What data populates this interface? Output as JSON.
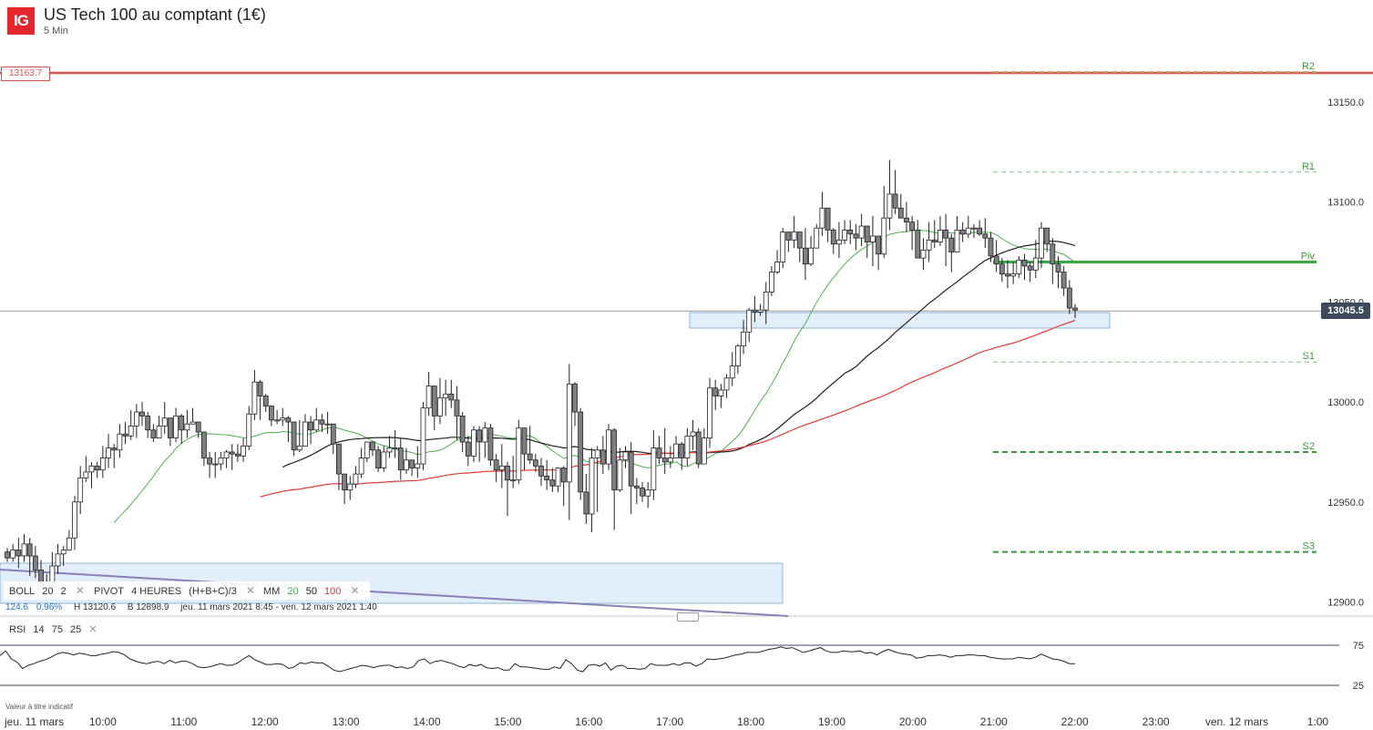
{
  "header": {
    "logo": "IG",
    "title": "US Tech 100 au comptant (1€)",
    "interval": "5 Min"
  },
  "current_price": "13045.5",
  "marked_level": "13163.7",
  "colors": {
    "up_candle": "#ffffff",
    "down_candle": "#7f7f86",
    "bollinger_mid": "#1f1f1f",
    "ma20": "#4caf50",
    "ma100": "#e53935",
    "pivot": "#3aa843",
    "price_box": "#3c4a5c",
    "zone": "#cfe2f6"
  },
  "indicators": [
    {
      "name": "BOLL",
      "params": [
        "20",
        "2"
      ],
      "close": "✕"
    },
    {
      "name": "PIVOT",
      "params": [
        "4 HEURES",
        "(H+B+C)/3"
      ],
      "close": "✕"
    },
    {
      "name": "MM",
      "params": [
        "20",
        "50",
        "100"
      ],
      "close": "✕"
    }
  ],
  "stats": {
    "change": "124.6",
    "change_pct": "0.96%",
    "high": "H 13120.6",
    "low": "B 12898.9",
    "range": "jeu. 11 mars 2021 8:45 - ven. 12 mars 2021 1:40"
  },
  "rsi": {
    "name": "RSI",
    "params": [
      "14",
      "75",
      "25"
    ],
    "close": "✕"
  },
  "disclaimer": "Valeur à titre indicatif",
  "chart_data": {
    "type": "candlestick",
    "y_ticks": [
      "13150.0",
      "13100.0",
      "13050.0",
      "13000.0",
      "12950.0",
      "12900.0"
    ],
    "y_tick_values": [
      13150,
      13100,
      13050,
      13000,
      12950,
      12900
    ],
    "ylim": [
      12893.6,
      13172.6
    ],
    "x_ticks": [
      "jeu. 11 mars",
      "10:00",
      "11:00",
      "12:00",
      "13:00",
      "14:00",
      "15:00",
      "16:00",
      "17:00",
      "18:00",
      "19:00",
      "20:00",
      "21:00",
      "22:00",
      "23:00",
      "ven. 12 mars",
      "1:00"
    ],
    "x_tick_hours": [
      9,
      10,
      11,
      12,
      13,
      14,
      15,
      16,
      17,
      18,
      19,
      20,
      21,
      22,
      23,
      24,
      25
    ],
    "pivots": [
      {
        "label": "R2",
        "value": 13165
      },
      {
        "label": "R1",
        "value": 13115
      },
      {
        "label": "Piv",
        "value": 13070
      },
      {
        "label": "S1",
        "value": 13020
      },
      {
        "label": "S2",
        "value": 12975
      },
      {
        "label": "S3",
        "value": 12925
      }
    ],
    "rsi_levels": [
      "75",
      "25"
    ],
    "candles": [
      [
        12925,
        12922,
        12927,
        12920
      ],
      [
        12922,
        12926,
        12929,
        12920
      ],
      [
        12926,
        12923,
        12932,
        12917
      ],
      [
        12923,
        12929,
        12934,
        12920
      ],
      [
        12929,
        12923,
        12932,
        12913
      ],
      [
        12923,
        12916,
        12928,
        12912
      ],
      [
        12916,
        12908,
        12921,
        12906
      ],
      [
        12908,
        12910,
        12914,
        12906
      ],
      [
        12910,
        12918,
        12925,
        12905
      ],
      [
        12918,
        12924,
        12929,
        12914
      ],
      [
        12924,
        12926,
        12928,
        12918
      ],
      [
        12926,
        12932,
        12936,
        12926
      ],
      [
        12932,
        12950,
        12953,
        12926
      ],
      [
        12950,
        12962,
        12968,
        12944
      ],
      [
        12962,
        12965,
        12973,
        12960
      ],
      [
        12965,
        12968,
        12970,
        12957
      ],
      [
        12968,
        12966,
        12970,
        12962
      ],
      [
        12966,
        12972,
        12978,
        12962
      ],
      [
        12972,
        12977,
        12984,
        12967
      ],
      [
        12977,
        12976,
        12979,
        12967
      ],
      [
        12976,
        12984,
        12989,
        12972
      ],
      [
        12984,
        12983,
        12990,
        12979
      ],
      [
        12983,
        12988,
        12996,
        12981
      ],
      [
        12988,
        12995,
        12999,
        12982
      ],
      [
        12995,
        12993,
        13000,
        12988
      ],
      [
        12993,
        12986,
        12995,
        12982
      ],
      [
        12986,
        12982,
        12989,
        12980
      ],
      [
        12982,
        12988,
        12993,
        12982
      ],
      [
        12988,
        12992,
        13000,
        12984
      ],
      [
        12992,
        12982,
        12991,
        12978
      ],
      [
        12982,
        12993,
        12997,
        12980
      ],
      [
        12993,
        12986,
        12994,
        12979
      ],
      [
        12986,
        12989,
        12996,
        12982
      ],
      [
        12989,
        12990,
        12997,
        12989
      ],
      [
        12990,
        12985,
        12988,
        12982
      ],
      [
        12985,
        12972,
        12983,
        12968
      ],
      [
        12972,
        12969,
        12975,
        12962
      ],
      [
        12969,
        12969,
        12975,
        12962
      ],
      [
        12969,
        12972,
        12975,
        12966
      ],
      [
        12972,
        12975,
        12976,
        12967
      ],
      [
        12975,
        12974,
        12979,
        12966
      ],
      [
        12974,
        12973,
        12979,
        12970
      ],
      [
        12973,
        12978,
        12982,
        12970
      ],
      [
        12978,
        12994,
        12998,
        12976
      ],
      [
        12994,
        13010,
        13016,
        12991
      ],
      [
        13010,
        13003,
        13011,
        12991
      ],
      [
        13003,
        12998,
        13004,
        12995
      ],
      [
        12998,
        12991,
        12998,
        12988
      ],
      [
        12991,
        12991,
        12996,
        12989
      ],
      [
        12991,
        12992,
        12997,
        12988
      ],
      [
        12992,
        12990,
        12993,
        12980
      ],
      [
        12990,
        12976,
        12989,
        12973
      ],
      [
        12976,
        12978,
        12991,
        12975
      ],
      [
        12978,
        12990,
        12994,
        12978
      ],
      [
        12990,
        12986,
        12993,
        12979
      ],
      [
        12986,
        12991,
        12997,
        12985
      ],
      [
        12991,
        12989,
        12994,
        12985
      ],
      [
        12989,
        12989,
        12995,
        12984
      ],
      [
        12989,
        12979,
        12987,
        12974
      ],
      [
        12979,
        12964,
        12976,
        12956
      ],
      [
        12964,
        12956,
        12961,
        12949
      ],
      [
        12956,
        12959,
        12963,
        12951
      ],
      [
        12959,
        12964,
        12968,
        12957
      ],
      [
        12964,
        12972,
        12977,
        12962
      ],
      [
        12972,
        12980,
        12980,
        12970
      ],
      [
        12980,
        12976,
        12980,
        12973
      ],
      [
        12976,
        12967,
        12978,
        12965
      ],
      [
        12967,
        12975,
        12978,
        12965
      ],
      [
        12975,
        12977,
        12983,
        12972
      ],
      [
        12977,
        12977,
        12986,
        12972
      ],
      [
        12977,
        12966,
        12982,
        12961
      ],
      [
        12966,
        12971,
        12977,
        12964
      ],
      [
        12971,
        12967,
        12968,
        12963
      ],
      [
        12967,
        12969,
        12978,
        12962
      ],
      [
        12969,
        12997,
        13000,
        12966
      ],
      [
        12997,
        13008,
        13015,
        12993
      ],
      [
        13008,
        12993,
        12997,
        12986
      ],
      [
        12993,
        13002,
        13012,
        12989
      ],
      [
        13002,
        13004,
        13011,
        12993
      ],
      [
        13004,
        13001,
        13011,
        12997
      ],
      [
        13001,
        12993,
        13008,
        12981
      ],
      [
        12993,
        12980,
        12995,
        12975
      ],
      [
        12980,
        12973,
        12983,
        12968
      ],
      [
        12973,
        12986,
        12988,
        12970
      ],
      [
        12986,
        12980,
        12988,
        12970
      ],
      [
        12980,
        12987,
        12990,
        12972
      ],
      [
        12987,
        12971,
        12989,
        12968
      ],
      [
        12971,
        12966,
        12974,
        12960
      ],
      [
        12966,
        12968,
        12979,
        12957
      ],
      [
        12968,
        12961,
        12970,
        12943
      ],
      [
        12961,
        12961,
        12973,
        12957
      ],
      [
        12961,
        12987,
        12991,
        12959
      ],
      [
        12987,
        12974,
        12985,
        12966
      ],
      [
        12974,
        12971,
        12988,
        12969
      ],
      [
        12971,
        12968,
        12974,
        12965
      ],
      [
        12968,
        12963,
        12972,
        12958
      ],
      [
        12963,
        12961,
        12971,
        12956
      ],
      [
        12961,
        12958,
        12967,
        12955
      ],
      [
        12958,
        12967,
        12967,
        12955
      ],
      [
        12967,
        12960,
        12968,
        12948
      ],
      [
        12960,
        13009,
        13019,
        12941
      ],
      [
        13009,
        12995,
        13010,
        12988
      ],
      [
        12995,
        12955,
        12997,
        12951
      ],
      [
        12955,
        12944,
        12964,
        12939
      ],
      [
        12944,
        12972,
        12977,
        12935
      ],
      [
        12972,
        12976,
        12978,
        12945
      ],
      [
        12976,
        12969,
        12983,
        12964
      ],
      [
        12969,
        12986,
        12989,
        12966
      ],
      [
        12986,
        12956,
        12987,
        12936
      ],
      [
        12956,
        12971,
        12977,
        12955
      ],
      [
        12971,
        12975,
        12978,
        12967
      ],
      [
        12975,
        12958,
        12980,
        12944
      ],
      [
        12958,
        12957,
        12962,
        12949
      ],
      [
        12957,
        12953,
        12960,
        12950
      ],
      [
        12953,
        12956,
        12960,
        12947
      ],
      [
        12956,
        12977,
        12986,
        12951
      ],
      [
        12977,
        12972,
        12983,
        12969
      ],
      [
        12972,
        12970,
        12987,
        12964
      ],
      [
        12970,
        12972,
        12978,
        12967
      ],
      [
        12972,
        12979,
        12983,
        12972
      ],
      [
        12979,
        12972,
        12980,
        12966
      ],
      [
        12972,
        12983,
        12987,
        12968
      ],
      [
        12983,
        12985,
        12991,
        12976
      ],
      [
        12985,
        12969,
        12987,
        12967
      ],
      [
        12969,
        12982,
        12987,
        12975
      ],
      [
        12982,
        13007,
        13012,
        12977
      ],
      [
        13007,
        13003,
        13011,
        12996
      ],
      [
        13003,
        13006,
        13009,
        12997
      ],
      [
        13006,
        13012,
        13014,
        13002
      ],
      [
        13012,
        13018,
        13025,
        13008
      ],
      [
        13018,
        13028,
        13029,
        13014
      ],
      [
        13028,
        13035,
        13041,
        13024
      ],
      [
        13035,
        13046,
        13047,
        13030
      ],
      [
        13046,
        13045,
        13053,
        13040
      ],
      [
        13045,
        13046,
        13049,
        13043
      ],
      [
        13046,
        13055,
        13060,
        13039
      ],
      [
        13055,
        13065,
        13068,
        13053
      ],
      [
        13065,
        13070,
        13076,
        13064
      ],
      [
        13070,
        13085,
        13087,
        13067
      ],
      [
        13085,
        13081,
        13085,
        13075
      ],
      [
        13081,
        13085,
        13093,
        13077
      ],
      [
        13085,
        13077,
        13082,
        13070
      ],
      [
        13077,
        13069,
        13087,
        13061
      ],
      [
        13069,
        13077,
        13083,
        13068
      ],
      [
        13077,
        13087,
        13089,
        13084
      ],
      [
        13087,
        13097,
        13105,
        13083
      ],
      [
        13097,
        13086,
        13095,
        13080
      ],
      [
        13086,
        13079,
        13087,
        13074
      ],
      [
        13079,
        13081,
        13090,
        13072
      ],
      [
        13081,
        13086,
        13091,
        13079
      ],
      [
        13086,
        13084,
        13091,
        13079
      ],
      [
        13084,
        13082,
        13089,
        13076
      ],
      [
        13082,
        13088,
        13094,
        13078
      ],
      [
        13088,
        13080,
        13084,
        13072
      ],
      [
        13080,
        13083,
        13093,
        13068
      ],
      [
        13083,
        13074,
        13083,
        13066
      ],
      [
        13074,
        13092,
        13108,
        13072
      ],
      [
        13092,
        13104,
        13121,
        13086
      ],
      [
        13104,
        13097,
        13116,
        13094
      ],
      [
        13097,
        13092,
        13104,
        13092
      ],
      [
        13092,
        13090,
        13100,
        13085
      ],
      [
        13090,
        13086,
        13093,
        13076
      ],
      [
        13086,
        13072,
        13091,
        13072
      ],
      [
        13072,
        13076,
        13082,
        13066
      ],
      [
        13076,
        13081,
        13090,
        13070
      ],
      [
        13081,
        13080,
        13091,
        13077
      ],
      [
        13080,
        13086,
        13093,
        13078
      ],
      [
        13086,
        13082,
        13094,
        13068
      ],
      [
        13082,
        13075,
        13084,
        13065
      ],
      [
        13075,
        13086,
        13093,
        13076
      ],
      [
        13086,
        13084,
        13090,
        13080
      ],
      [
        13084,
        13087,
        13093,
        13082
      ],
      [
        13087,
        13087,
        13089,
        13082
      ],
      [
        13087,
        13084,
        13091,
        13083
      ],
      [
        13084,
        13082,
        13092,
        13077
      ],
      [
        13082,
        13073,
        13085,
        13070
      ],
      [
        13073,
        13069,
        13081,
        13065
      ],
      [
        13069,
        13064,
        13072,
        13060
      ],
      [
        13064,
        13063,
        13071,
        13057
      ],
      [
        13063,
        13064,
        13070,
        13059
      ],
      [
        13064,
        13071,
        13073,
        13062
      ],
      [
        13071,
        13068,
        13074,
        13061
      ],
      [
        13068,
        13066,
        13070,
        13060
      ],
      [
        13066,
        13072,
        13081,
        13062
      ],
      [
        13072,
        13087,
        13090,
        13067
      ],
      [
        13087,
        13079,
        13087,
        13075
      ],
      [
        13079,
        13069,
        13082,
        13059
      ],
      [
        13069,
        13065,
        13073,
        13057
      ],
      [
        13065,
        13057,
        13068,
        13053
      ],
      [
        13057,
        13047,
        13061,
        13044
      ],
      [
        13047,
        13046,
        13049,
        13042
      ]
    ],
    "rsi_values": [
      62,
      68,
      58,
      54,
      46,
      50,
      52,
      55,
      57,
      60,
      64,
      66,
      65,
      63,
      65,
      64,
      62,
      62,
      64,
      65,
      67,
      66,
      63,
      58,
      55,
      53,
      52,
      54,
      55,
      52,
      56,
      53,
      55,
      55,
      52,
      48,
      47,
      48,
      50,
      52,
      50,
      50,
      53,
      58,
      62,
      57,
      54,
      51,
      51,
      52,
      51,
      46,
      48,
      53,
      52,
      54,
      53,
      53,
      49,
      44,
      42,
      44,
      46,
      48,
      50,
      49,
      47,
      49,
      50,
      50,
      47,
      48,
      46,
      48,
      56,
      58,
      52,
      55,
      56,
      54,
      52,
      49,
      47,
      51,
      49,
      51,
      47,
      46,
      47,
      44,
      44,
      52,
      48,
      48,
      47,
      46,
      45,
      45,
      48,
      46,
      57,
      52,
      44,
      42,
      50,
      51,
      49,
      53,
      44,
      49,
      50,
      46,
      46,
      45,
      46,
      52,
      50,
      50,
      50,
      52,
      50,
      53,
      53,
      49,
      52,
      58,
      57,
      58,
      59,
      61,
      63,
      64,
      66,
      66,
      66,
      68,
      70,
      71,
      73,
      71,
      72,
      69,
      66,
      68,
      70,
      72,
      68,
      66,
      66,
      68,
      67,
      67,
      68,
      65,
      66,
      63,
      67,
      70,
      67,
      65,
      64,
      63,
      59,
      60,
      62,
      62,
      63,
      62,
      60,
      62,
      62,
      63,
      63,
      62,
      62,
      60,
      59,
      58,
      58,
      58,
      60,
      59,
      58,
      60,
      64,
      61,
      58,
      57,
      55,
      52,
      52
    ]
  }
}
